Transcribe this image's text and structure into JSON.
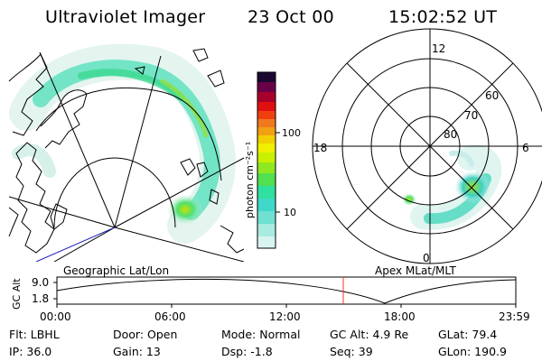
{
  "header": {
    "instrument": "Ultraviolet Imager",
    "date": "23 Oct 00",
    "time": "15:02:52 UT"
  },
  "colorbar": {
    "unit_label": "photon cm⁻²s⁻¹",
    "ticks": [
      "100",
      "10"
    ]
  },
  "polar_plot": {
    "mlt_labels": [
      "12",
      "18",
      "6",
      "0"
    ],
    "lat_labels": [
      "60",
      "70",
      "80"
    ]
  },
  "map_labels": {
    "left": "Geographic Lat/Lon",
    "right": "Apex MLat/MLT"
  },
  "orbit_plot": {
    "y_axis_label": "GC Alt",
    "y_ticks": [
      "9.0",
      "1.8"
    ],
    "x_ticks": [
      "00:00",
      "06:00",
      "12:00",
      "18:00",
      "23:59"
    ]
  },
  "info": {
    "filter": "Flt: LBHL",
    "ip": "IP: 36.0",
    "door": "Door: Open",
    "gain": "Gain: 13",
    "mode": "Mode: Normal",
    "dsp": "Dsp:    -1.8",
    "gc_alt": "GC Alt: 4.9 Re",
    "seq": "Seq: 39",
    "glat": "GLat: 79.4",
    "glon": "GLon: 190.9"
  },
  "colors": {
    "aurora_low": "#d8f0e8",
    "aurora_mid": "#40e0c0",
    "aurora_high": "#a0e020",
    "marker": "#ff3030",
    "track": "#2020c0"
  }
}
